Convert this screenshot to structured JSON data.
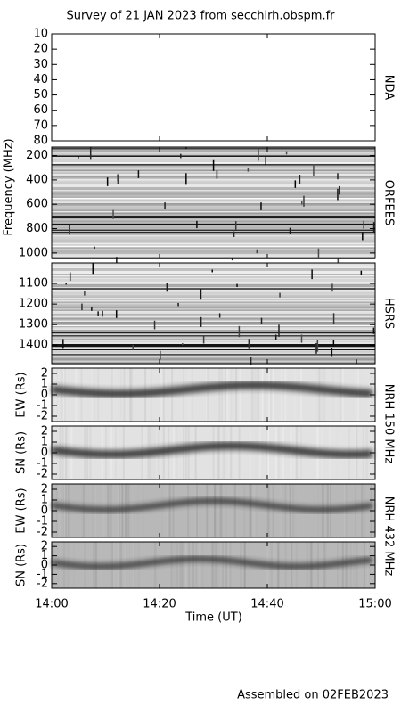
{
  "title": "Survey of 21 JAN 2023 from secchirh.obspm.fr",
  "y_label": "Frequency (MHz)",
  "x_label": "Time (UT)",
  "xlim": [
    "14:00",
    "15:00"
  ],
  "xticks": [
    "14:00",
    "14:20",
    "14:40",
    "15:00"
  ],
  "footer": "Assembled on 02FEB2023",
  "chart_data": [
    {
      "type": "spectrogram",
      "side_label": "NDA",
      "ylim": [
        80,
        10
      ],
      "yticks": [
        10,
        20,
        30,
        40,
        50,
        60,
        70,
        80
      ]
    },
    {
      "type": "spectrogram",
      "side_label": "ORFEES",
      "ylim": [
        1045,
        130
      ],
      "yticks": [
        200,
        400,
        600,
        800,
        1000
      ]
    },
    {
      "type": "spectrogram",
      "side_label": "HSRS",
      "ylim": [
        1490,
        1000
      ],
      "yticks": [
        1100,
        1200,
        1300,
        1400
      ]
    },
    {
      "type": "heliogram",
      "side_label": "NRH 150 MHz",
      "y_label": "EW (Rs)",
      "ylim": [
        -2.5,
        2.5
      ],
      "yticks": [
        -2,
        -1,
        0,
        1,
        2
      ]
    },
    {
      "type": "heliogram",
      "y_label": "SN (Rs)",
      "ylim": [
        -2.5,
        2.5
      ],
      "yticks": [
        -2,
        -1,
        0,
        1,
        2
      ]
    },
    {
      "type": "heliogram",
      "side_label": "NRH 432 MHz",
      "y_label": "EW (Rs)",
      "ylim": [
        -2.5,
        2.5
      ],
      "yticks": [
        -2,
        -1,
        0,
        1,
        2
      ]
    },
    {
      "type": "heliogram",
      "y_label": "SN (Rs)",
      "ylim": [
        -2.5,
        2.5
      ],
      "yticks": [
        -2,
        -1,
        0,
        1,
        2
      ]
    }
  ]
}
